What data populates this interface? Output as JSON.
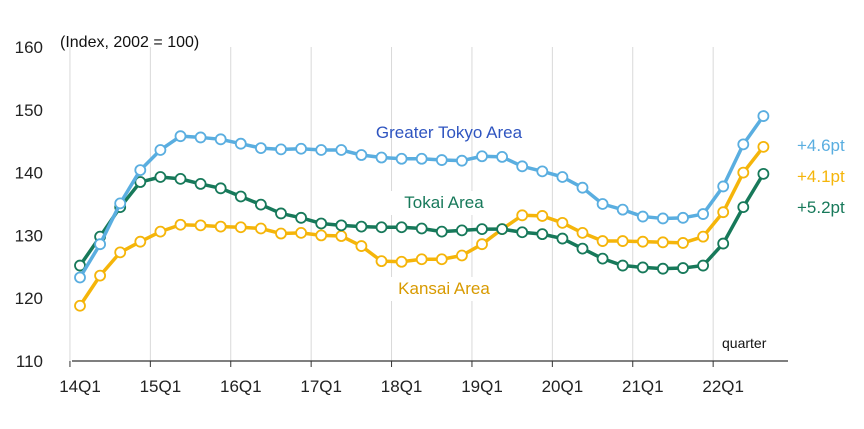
{
  "chart_data": {
    "type": "line",
    "ylabel": "(Index, 2002 = 100)",
    "xunit": "quarter",
    "ylim": [
      110,
      160
    ],
    "yticks": [
      110,
      120,
      130,
      140,
      150,
      160
    ],
    "grid": "vertical",
    "xticklabels": [
      "14Q1",
      "15Q1",
      "16Q1",
      "17Q1",
      "18Q1",
      "19Q1",
      "20Q1",
      "21Q1",
      "22Q1"
    ],
    "x": [
      "14Q1",
      "14Q2",
      "14Q3",
      "14Q4",
      "15Q1",
      "15Q2",
      "15Q3",
      "15Q4",
      "16Q1",
      "16Q2",
      "16Q3",
      "16Q4",
      "17Q1",
      "17Q2",
      "17Q3",
      "17Q4",
      "18Q1",
      "18Q2",
      "18Q3",
      "18Q4",
      "19Q1",
      "19Q2",
      "19Q3",
      "19Q4",
      "20Q1",
      "20Q2",
      "20Q3",
      "20Q4",
      "21Q1",
      "21Q2",
      "21Q3",
      "21Q4",
      "22Q1",
      "22Q2",
      "22Q3"
    ],
    "series": [
      {
        "name": "Greater Tokyo Area",
        "color": "#5aaee0",
        "label_color": "#2f55c0",
        "delta": "+4.6pt",
        "values": [
          123.3,
          128.6,
          135.1,
          140.4,
          143.6,
          145.8,
          145.6,
          145.3,
          144.6,
          143.9,
          143.7,
          143.8,
          143.6,
          143.6,
          142.8,
          142.4,
          142.2,
          142.2,
          142.0,
          141.9,
          142.6,
          142.5,
          141.0,
          140.2,
          139.3,
          137.6,
          135.0,
          134.1,
          133.0,
          132.7,
          132.8,
          133.4,
          137.8,
          144.5,
          149.0
        ]
      },
      {
        "name": "Tokai Area",
        "color": "#17795a",
        "label_color": "#17795a",
        "delta": "+5.2pt",
        "values": [
          125.2,
          129.8,
          134.5,
          138.5,
          139.3,
          139.0,
          138.2,
          137.5,
          136.2,
          134.9,
          133.5,
          132.8,
          131.9,
          131.6,
          131.4,
          131.3,
          131.3,
          131.1,
          130.6,
          130.8,
          131.0,
          131.0,
          130.5,
          130.2,
          129.5,
          127.9,
          126.3,
          125.2,
          124.9,
          124.7,
          124.8,
          125.2,
          128.7,
          134.5,
          139.8
        ]
      },
      {
        "name": "Kansai Area",
        "color": "#f5b50a",
        "label_color": "#d89a00",
        "delta": "+4.1pt",
        "values": [
          118.8,
          123.6,
          127.3,
          129.0,
          130.6,
          131.7,
          131.6,
          131.4,
          131.3,
          131.1,
          130.3,
          130.4,
          130.0,
          129.9,
          128.3,
          125.9,
          125.8,
          126.2,
          126.2,
          126.8,
          128.6,
          131.0,
          133.2,
          133.1,
          132.0,
          130.4,
          129.1,
          129.1,
          129.0,
          128.9,
          128.8,
          129.8,
          133.7,
          140.0,
          144.1
        ]
      }
    ]
  }
}
